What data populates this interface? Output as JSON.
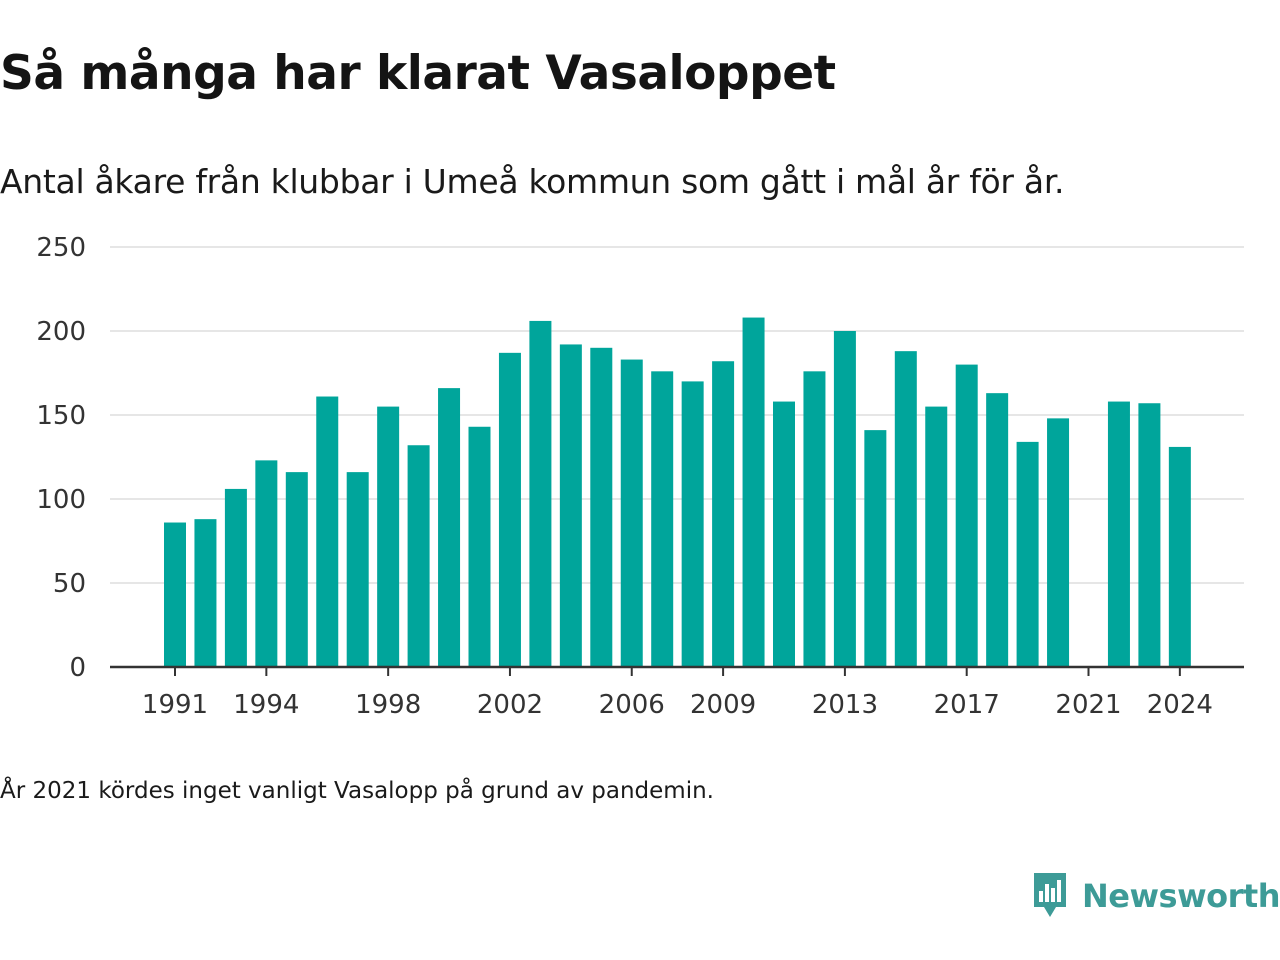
{
  "header": {
    "title": "Så många har klarat Vasaloppet",
    "subtitle": "Antal åkare från klubbar i Umeå kommun som gått i mål år för år."
  },
  "footer": {
    "note": "År 2021 kördes inget vanligt Vasalopp på grund av pandemin.",
    "brand": "Newsworthy",
    "brand_icon": "newsworthy-logo-icon"
  },
  "colors": {
    "bar": "#00a59b",
    "grid": "#dddddd",
    "axis": "#333333",
    "brand": "#3d9b97"
  },
  "chart_data": {
    "type": "bar",
    "x": [
      1991,
      1992,
      1993,
      1994,
      1995,
      1996,
      1997,
      1998,
      1999,
      2000,
      2001,
      2002,
      2003,
      2004,
      2005,
      2006,
      2007,
      2008,
      2009,
      2010,
      2011,
      2012,
      2013,
      2014,
      2015,
      2016,
      2017,
      2018,
      2019,
      2020,
      2021,
      2022,
      2023,
      2024
    ],
    "values": [
      86,
      88,
      106,
      123,
      116,
      161,
      116,
      155,
      132,
      166,
      143,
      187,
      206,
      192,
      190,
      183,
      176,
      170,
      182,
      208,
      158,
      176,
      200,
      141,
      188,
      155,
      180,
      163,
      134,
      148,
      null,
      158,
      157,
      131
    ],
    "x_tick_labels": [
      "1991",
      "1994",
      "1998",
      "2002",
      "2006",
      "2009",
      "2013",
      "2017",
      "2021",
      "2024"
    ],
    "y_ticks": [
      0,
      50,
      100,
      150,
      200,
      250
    ],
    "ylim": [
      0,
      250
    ],
    "grid": true,
    "legend": "none"
  }
}
